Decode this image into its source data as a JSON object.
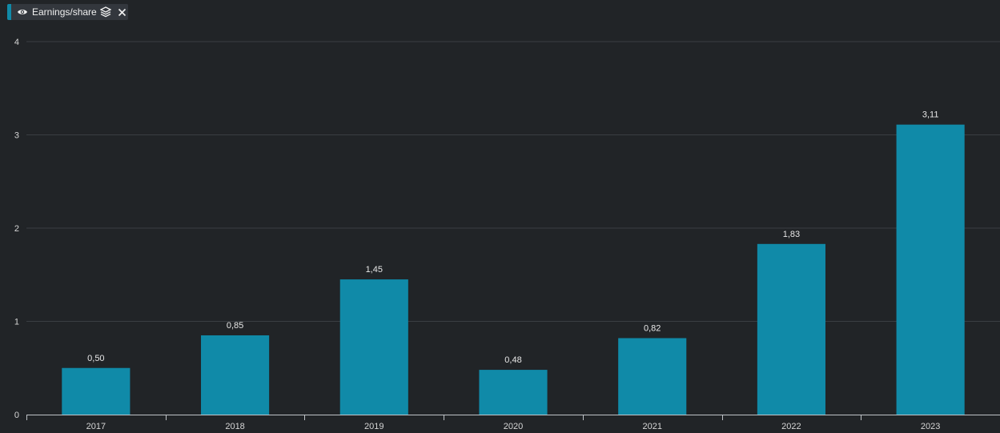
{
  "legend": {
    "label": "Earnings/share",
    "color": "#108aa8",
    "icons": [
      "eye-icon",
      "layers-icon",
      "close-icon"
    ]
  },
  "chart_data": {
    "type": "bar",
    "categories": [
      "2017",
      "2018",
      "2019",
      "2020",
      "2021",
      "2022",
      "2023"
    ],
    "series": [
      {
        "values": [
          0.5,
          0.85,
          1.45,
          0.48,
          0.82,
          1.83,
          3.11
        ],
        "labels": [
          "0,50",
          "0,85",
          "1,45",
          "0,48",
          "0,82",
          "1,83",
          "3,11"
        ],
        "color": "#108aa8"
      }
    ],
    "yticks": [
      "0",
      "1",
      "2",
      "3",
      "4"
    ],
    "ylim": [
      0,
      4
    ],
    "grid": true,
    "legend_position": "top-left",
    "background": "#212427",
    "gridColor": "#3a3e43",
    "axisColor": "#bfc3c7"
  }
}
